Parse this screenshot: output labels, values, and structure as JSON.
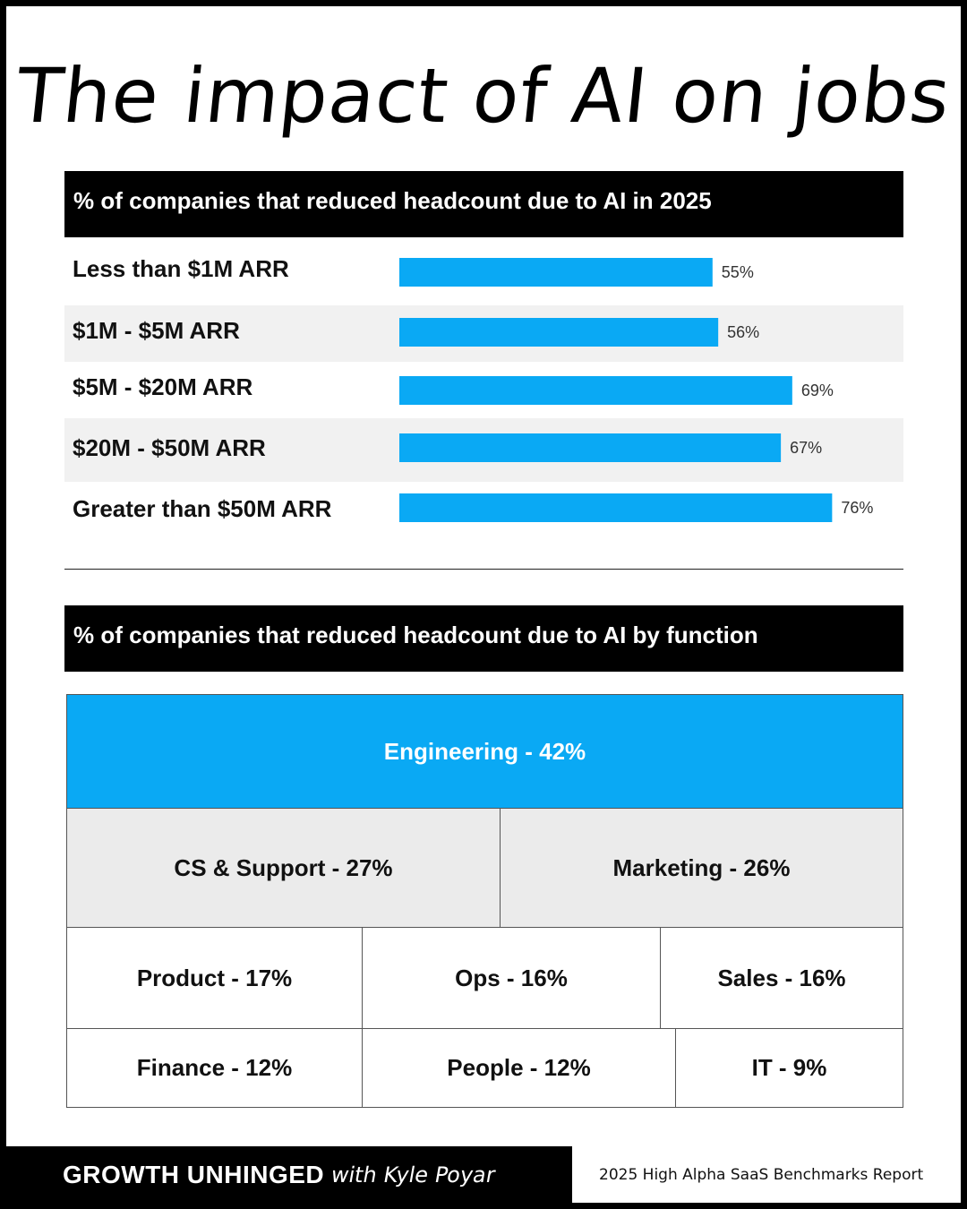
{
  "title": "The impact of AI on jobs",
  "section1": {
    "header": "% of companies that reduced headcount due to AI in 2025"
  },
  "section2": {
    "header": "% of companies that reduced headcount due to AI by function"
  },
  "chart_data": [
    {
      "type": "bar",
      "orientation": "horizontal",
      "title": "% of companies that reduced headcount due to AI in 2025",
      "categories": [
        "Less than $1M ARR",
        "$1M - $5M ARR",
        "$5M - $20M ARR",
        "$20M - $50M ARR",
        "Greater than $50M ARR"
      ],
      "values": [
        55,
        56,
        69,
        67,
        76
      ],
      "value_labels": [
        "55%",
        "56%",
        "69%",
        "67%",
        "76%"
      ],
      "xlim": [
        0,
        100
      ],
      "color": "#0aa9f4",
      "grid": false
    },
    {
      "type": "table",
      "title": "% of companies that reduced headcount due to AI by function",
      "cells": [
        {
          "label": "Engineering - 42%",
          "function": "Engineering",
          "value": 42
        },
        {
          "label": "CS & Support - 27%",
          "function": "CS & Support",
          "value": 27
        },
        {
          "label": "Marketing - 26%",
          "function": "Marketing",
          "value": 26
        },
        {
          "label": "Product - 17%",
          "function": "Product",
          "value": 17
        },
        {
          "label": "Ops - 16%",
          "function": "Ops",
          "value": 16
        },
        {
          "label": "Sales - 16%",
          "function": "Sales",
          "value": 16
        },
        {
          "label": "Finance - 12%",
          "function": "Finance",
          "value": 12
        },
        {
          "label": "People - 12%",
          "function": "People",
          "value": 12
        },
        {
          "label": "IT - 9%",
          "function": "IT",
          "value": 9
        }
      ]
    }
  ],
  "footer": {
    "brand": "GROWTH UNHINGED",
    "byline": "with Kyle Poyar",
    "source": "2025 High Alpha SaaS Benchmarks Report"
  },
  "colors": {
    "accent": "#0aa9f4",
    "stripe": "#f1f1f1",
    "header_bg": "#000000"
  }
}
